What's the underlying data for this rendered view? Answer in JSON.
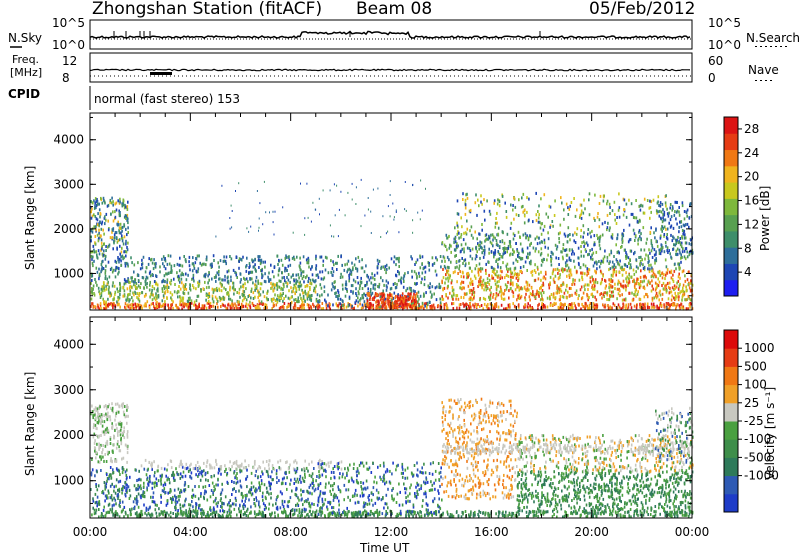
{
  "header": {
    "station": "Zhongshan Station (fitACF)",
    "beam": "Beam 08",
    "date": "05/Feb/2012"
  },
  "status_panels": {
    "nsky_label": "N.Sky",
    "nsky_ticks": [
      "10^5",
      "10^0"
    ],
    "nsearch_label": "N.Search",
    "nsearch_ticks": [
      "10^5",
      "10^0"
    ],
    "freq_label_1": "Freq.",
    "freq_label_2": "[MHz]",
    "freq_ticks": [
      "12",
      "8"
    ],
    "nave_label": "Nave",
    "nave_ticks": [
      "60",
      "0"
    ],
    "cpid_label": "CPID",
    "cpid_text": "normal (fast stereo) 153"
  },
  "chart_data": [
    {
      "type": "heatmap",
      "title": "",
      "ylabel": "Slant Range [km]",
      "ylim": [
        180,
        4600
      ],
      "yticks": [
        "1000",
        "2000",
        "3000",
        "4000"
      ],
      "xlim": [
        "00:00",
        "24:00"
      ],
      "colorbar": {
        "label": "Power [dB]",
        "ticks": [
          "4",
          "8",
          "12",
          "16",
          "20",
          "24",
          "28"
        ],
        "colors": [
          "#1e1ef0",
          "#1e46b4",
          "#2e6e9a",
          "#3e8e6a",
          "#58a050",
          "#7eb83c",
          "#c8c81e",
          "#f0b41e",
          "#f07814",
          "#e63c14",
          "#dc1414"
        ]
      }
    },
    {
      "type": "heatmap",
      "title": "",
      "ylabel": "Slant Range [km]",
      "ylim": [
        180,
        4600
      ],
      "yticks": [
        "1000",
        "2000",
        "3000",
        "4000"
      ],
      "xlim": [
        "00:00",
        "24:00"
      ],
      "xticks": [
        "00:00",
        "04:00",
        "08:00",
        "12:00",
        "16:00",
        "20:00",
        "00:00"
      ],
      "xlabel": "Time UT",
      "colorbar": {
        "label": "Velocity [m s⁻¹]",
        "ticks": [
          "1000",
          "500",
          "100",
          "25",
          "-25",
          "-100",
          "-500",
          "-1000"
        ],
        "colors": [
          "#1e3cc8",
          "#2e5ab4",
          "#2e7a5a",
          "#3e8e4a",
          "#4aa040",
          "#c8c8c0",
          "#f0a028",
          "#f07814",
          "#e63c14",
          "#dc0a0a"
        ]
      }
    }
  ]
}
